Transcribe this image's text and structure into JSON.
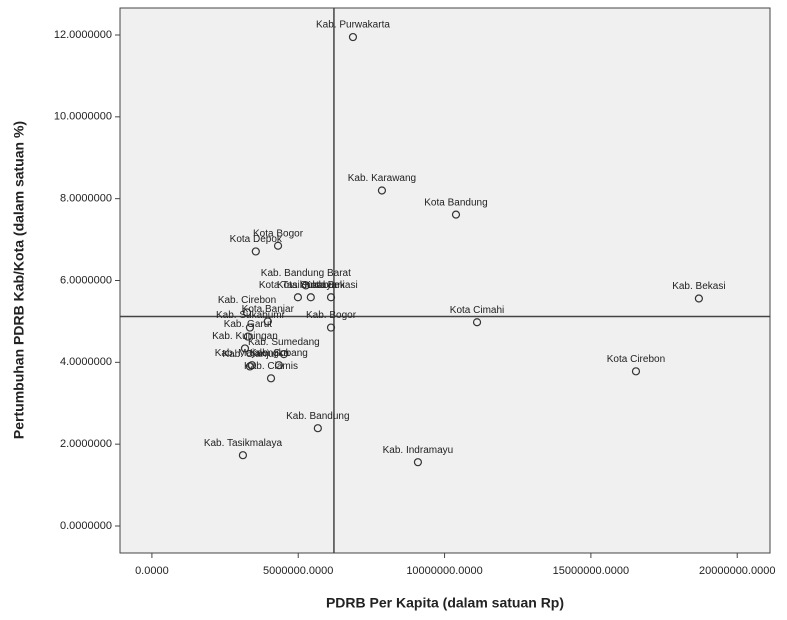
{
  "chart_data": {
    "type": "scatter",
    "x_label": "PDRB Per Kapita (dalam satuan Rp)",
    "y_label": "Pertumbuhan PDRB Kab/Kota (dalam satuan %)",
    "xlim": [
      -1090000,
      21120000
    ],
    "ylim": [
      -0.66,
      12.66
    ],
    "xticks": [
      {
        "value": 0,
        "label": "0.0000"
      },
      {
        "value": 5000000,
        "label": "5000000.0000"
      },
      {
        "value": 10000000,
        "label": "10000000.0000"
      },
      {
        "value": 15000000,
        "label": "15000000.0000"
      },
      {
        "value": 20000000,
        "label": "20000000.0000"
      }
    ],
    "yticks": [
      {
        "value": 0,
        "label": "0.0000000"
      },
      {
        "value": 2,
        "label": "2.0000000"
      },
      {
        "value": 4,
        "label": "4.0000000"
      },
      {
        "value": 6,
        "label": "6.0000000"
      },
      {
        "value": 8,
        "label": "8.0000000"
      },
      {
        "value": 10,
        "label": "10.0000000"
      },
      {
        "value": 12,
        "label": "12.0000000"
      }
    ],
    "reference_x": 6220000,
    "reference_y": 5.12,
    "color": "#333333",
    "point_labels": [
      "Kab. Purwakarta",
      "Kab. Karawang",
      "Kota Bandung",
      "Kota Depok",
      "Kota Bogor",
      "Kab. Bandung Barat",
      "Kota Bekasi",
      "Kota Tasikmalaya",
      "Kota Sukabumi",
      "Kab. Cirebon",
      "Kota Banjar",
      "Kab. Sukabumi",
      "Kab. Garut",
      "Kab. Bogor",
      "Kab. Kuningan",
      "Kab. Sumedang",
      "Kab. Majalengka",
      "Kab. Subang",
      "Kab. Cianjur",
      "Kab. Ciamis",
      "Kota Cimahi",
      "Kota Cirebon",
      "Kab. Bekasi",
      "Kab. Bandung",
      "Kab. Tasikmalaya",
      "Kab. Indramayu"
    ],
    "x": [
      6870000,
      7860000,
      10390000,
      3550000,
      4310000,
      5260000,
      6120000,
      4990000,
      5430000,
      3250000,
      3960000,
      3350000,
      3280000,
      6120000,
      3180000,
      4510000,
      3420000,
      4340000,
      3350000,
      4070000,
      11110000,
      16540000,
      18690000,
      5670000,
      3110000,
      9090000
    ],
    "values": [
      11.95,
      8.2,
      7.61,
      6.71,
      6.85,
      5.88,
      5.59,
      5.59,
      5.59,
      5.22,
      5.0,
      4.85,
      4.63,
      4.85,
      4.34,
      4.2,
      3.93,
      3.93,
      3.9,
      3.61,
      4.98,
      3.78,
      5.56,
      2.39,
      1.73,
      1.56
    ]
  }
}
